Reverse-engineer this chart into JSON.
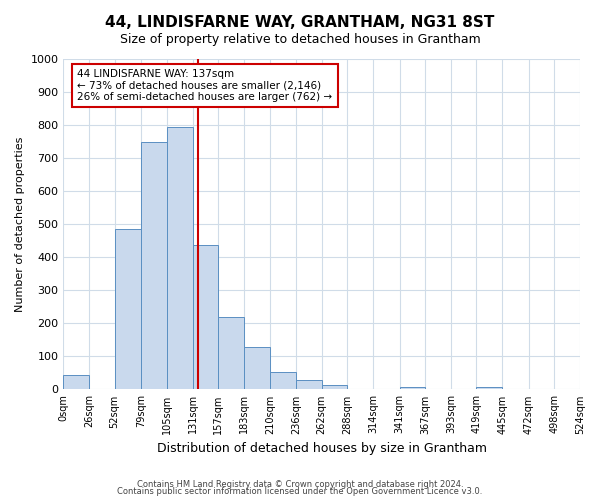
{
  "title": "44, LINDISFARNE WAY, GRANTHAM, NG31 8ST",
  "subtitle": "Size of property relative to detached houses in Grantham",
  "xlabel": "Distribution of detached houses by size in Grantham",
  "ylabel": "Number of detached properties",
  "bin_labels": [
    "0sqm",
    "26sqm",
    "52sqm",
    "79sqm",
    "105sqm",
    "131sqm",
    "157sqm",
    "183sqm",
    "210sqm",
    "236sqm",
    "262sqm",
    "288sqm",
    "314sqm",
    "341sqm",
    "367sqm",
    "393sqm",
    "419sqm",
    "445sqm",
    "472sqm",
    "498sqm",
    "524sqm"
  ],
  "bin_edges": [
    0,
    26,
    52,
    79,
    105,
    131,
    157,
    183,
    210,
    236,
    262,
    288,
    314,
    341,
    367,
    393,
    419,
    445,
    472,
    498,
    524
  ],
  "bar_heights": [
    43,
    0,
    487,
    748,
    793,
    437,
    220,
    127,
    52,
    28,
    14,
    0,
    0,
    8,
    0,
    0,
    7,
    0,
    0,
    0
  ],
  "bar_color": "#c9d9ed",
  "bar_edge_color": "#5a8fc2",
  "vline_x": 137,
  "vline_color": "#cc0000",
  "annotation_title": "44 LINDISFARNE WAY: 137sqm",
  "annotation_line1": "← 73% of detached houses are smaller (2,146)",
  "annotation_line2": "26% of semi-detached houses are larger (762) →",
  "annotation_box_color": "#ffffff",
  "annotation_box_edge": "#cc0000",
  "ylim": [
    0,
    1000
  ],
  "yticks": [
    0,
    100,
    200,
    300,
    400,
    500,
    600,
    700,
    800,
    900,
    1000
  ],
  "footer1": "Contains HM Land Registry data © Crown copyright and database right 2024.",
  "footer2": "Contains public sector information licensed under the Open Government Licence v3.0.",
  "bg_color": "#ffffff",
  "grid_color": "#d0dce8"
}
